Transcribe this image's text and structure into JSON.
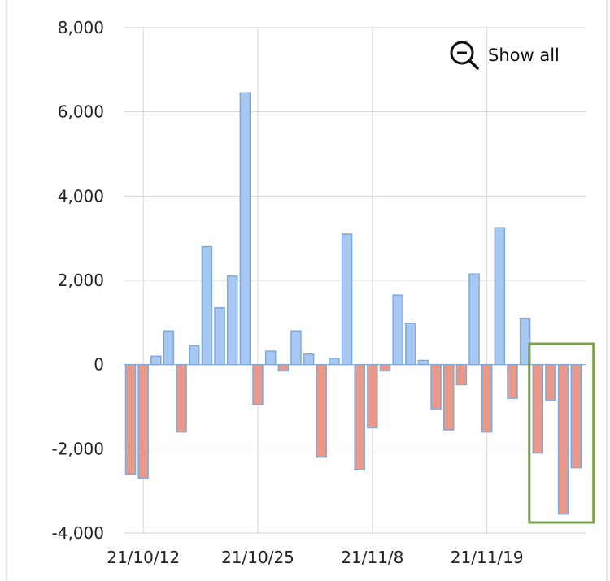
{
  "toolbar": {
    "show_all_label": "Show all",
    "show_all_icon": "zoom-out-icon"
  },
  "colors": {
    "positive_fill": "#a6c8f2",
    "positive_stroke": "#7ea9dd",
    "negative_fill": "#e9998a",
    "negative_stroke": "#7ea9dd",
    "grid": "#d6d6d6",
    "highlight": "#7aa04c",
    "frame": "#d0d0d0"
  },
  "chart_data": {
    "type": "bar",
    "title": "",
    "xlabel": "",
    "ylabel": "",
    "ylim": [
      -4000,
      8000
    ],
    "yticks": [
      -4000,
      -2000,
      0,
      2000,
      4000,
      6000,
      8000
    ],
    "ytick_labels": [
      "-4,000",
      "-2,000",
      "0",
      "2,000",
      "4,000",
      "6,000",
      "8,000"
    ],
    "xtick_labels": [
      {
        "label": "21/10/12",
        "category_index": 1
      },
      {
        "label": "21/10/25",
        "category_index": 10
      },
      {
        "label": "21/11/8",
        "category_index": 19
      },
      {
        "label": "21/11/19",
        "category_index": 28
      }
    ],
    "grid": true,
    "values": [
      -2600,
      -2700,
      200,
      800,
      -1600,
      450,
      2800,
      1350,
      2100,
      6450,
      -950,
      320,
      -150,
      800,
      250,
      -2200,
      150,
      3100,
      -2500,
      -1500,
      -150,
      1650,
      980,
      100,
      -1050,
      -1550,
      -480,
      2150,
      -1600,
      3250,
      -800,
      1100,
      -2100,
      -850,
      -3550,
      -2450
    ],
    "highlight_range": [
      32,
      35
    ]
  }
}
